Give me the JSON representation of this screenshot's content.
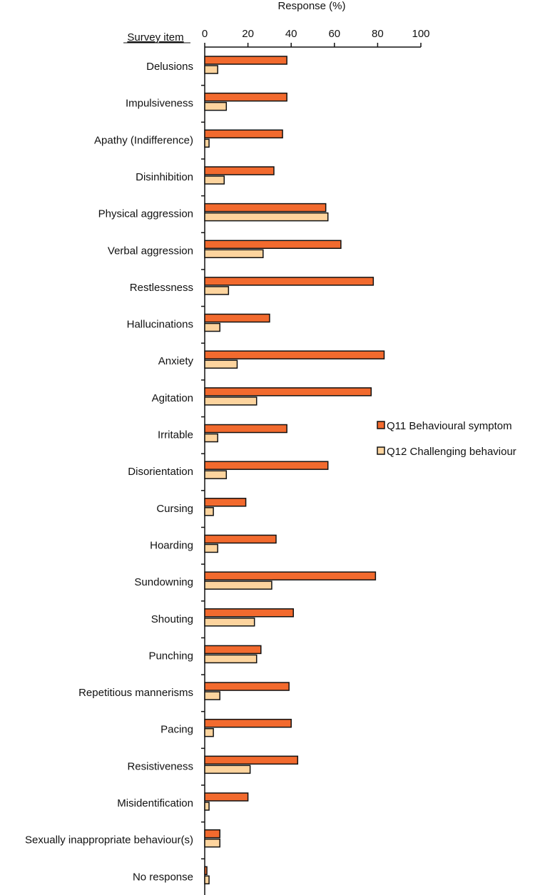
{
  "chart_data": {
    "type": "bar",
    "orientation": "horizontal",
    "title": "",
    "xlabel": "Response (%)",
    "ylabel": "Survey item",
    "xlim": [
      0,
      100
    ],
    "xticks": [
      "0",
      "20",
      "40",
      "60",
      "80",
      "100"
    ],
    "categories": [
      "Delusions",
      "Impulsiveness",
      "Apathy (Indifference)",
      "Disinhibition",
      "Physical aggression",
      "Verbal aggression",
      "Restlessness",
      "Hallucinations",
      "Anxiety",
      "Agitation",
      "Irritable",
      "Disorientation",
      "Cursing",
      "Hoarding",
      "Sundowning",
      "Shouting",
      "Punching",
      "Repetitious mannerisms",
      "Pacing",
      "Resistiveness",
      "Misidentification",
      "Sexually inappropriate behaviour(s)",
      "No response"
    ],
    "series": [
      {
        "name": "Q11 Behavioural symptom",
        "color": "#f26a2e",
        "values": [
          38,
          38,
          36,
          32,
          56,
          63,
          78,
          30,
          83,
          77,
          38,
          57,
          19,
          33,
          79,
          41,
          26,
          39,
          40,
          43,
          20,
          7,
          1
        ]
      },
      {
        "name": "Q12 Challenging behaviour",
        "color": "#fdd49e",
        "values": [
          6,
          10,
          2,
          9,
          57,
          27,
          11,
          7,
          15,
          24,
          6,
          10,
          4,
          6,
          31,
          23,
          24,
          7,
          4,
          21,
          2,
          7,
          2
        ]
      }
    ],
    "legend_position": "right",
    "grid": false
  }
}
